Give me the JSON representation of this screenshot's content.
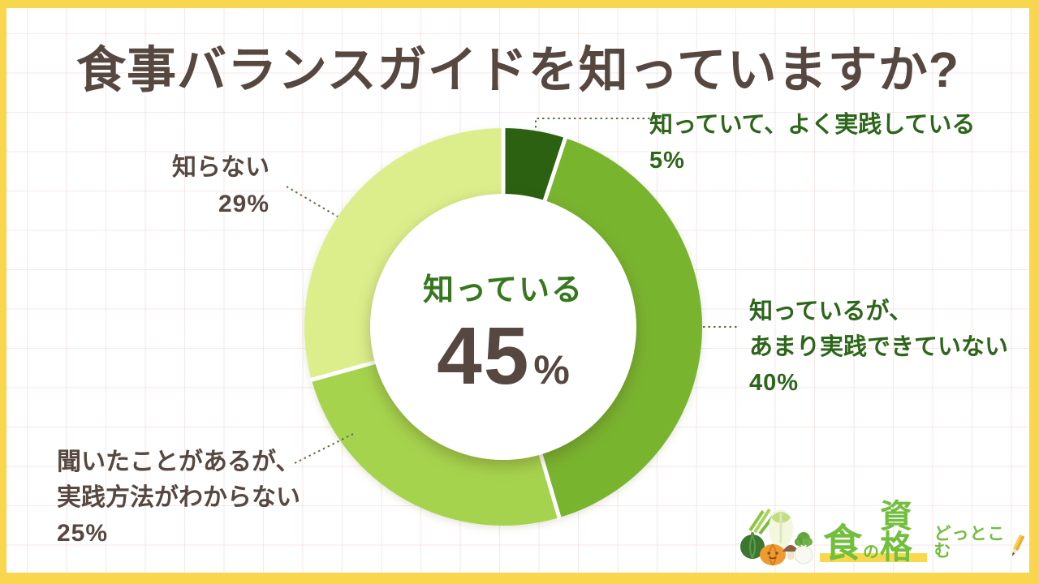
{
  "frame": {
    "border_color": "#F8D74E",
    "grid_color": "#ECC4C4",
    "background": "#FFFFFF"
  },
  "title": {
    "text": "食事バランスガイドを知っていますか?",
    "color": "#564840"
  },
  "chart_data": {
    "type": "pie",
    "subtype": "donut",
    "title": "食事バランスガイドを知っていますか?",
    "start_angle_deg": 0,
    "direction": "clockwise",
    "ring": {
      "outer_radius": 245,
      "inner_radius": 164,
      "separator_color": "#FFFFFF"
    },
    "leader_color": "#5E7046",
    "center": {
      "label": "知っている",
      "value": "45",
      "unit": "%",
      "label_color": "#35781D",
      "value_color": "#564840"
    },
    "slices": [
      {
        "label": "知っていて、よく実践している",
        "lines": [
          "知っていて、よく実践している"
        ],
        "value": 5,
        "pct_text": "5%",
        "color": "#2B6110",
        "label_color": "#2C661A"
      },
      {
        "label": "知っているが、あまり実践できていない",
        "lines": [
          "知っているが、",
          "あまり実践できていない"
        ],
        "value": 40,
        "pct_text": "40%",
        "color": "#79B42F",
        "label_color": "#2C661A"
      },
      {
        "label": "聞いたことがあるが、実践方法がわからない",
        "lines": [
          "聞いたことがあるが、",
          "実践方法がわからない"
        ],
        "value": 25,
        "pct_text": "25%",
        "color": "#A6D34E",
        "label_color": "#564840"
      },
      {
        "label": "知らない",
        "lines": [
          "知らない"
        ],
        "value": 29,
        "pct_text": "29%",
        "color": "#DCEE8C",
        "label_color": "#564840"
      }
    ]
  },
  "logo": {
    "brand_part_1": "食",
    "brand_part_2": "の",
    "brand_part_3": "資格",
    "brand_suffix": "どっとこむ",
    "text_color": "#72BE3D",
    "highlight_color": "#F9D84F"
  }
}
